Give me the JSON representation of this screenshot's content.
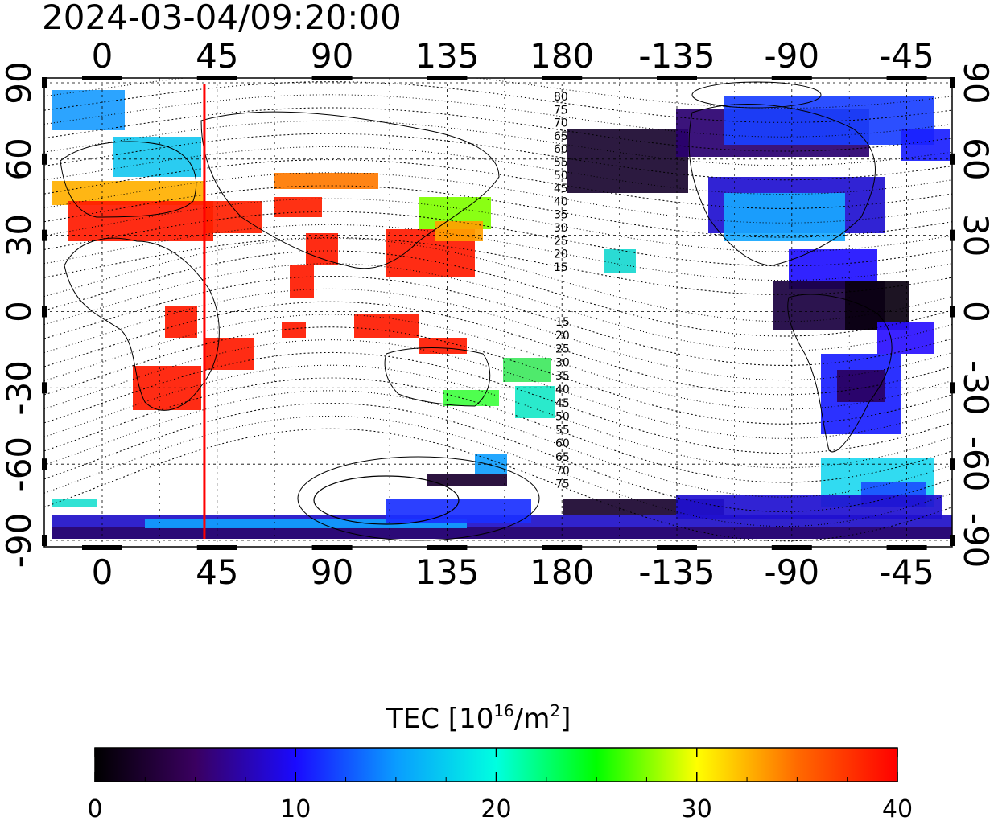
{
  "title": "2024-03-04/09:20:00",
  "lon_ticks": [
    "0",
    "45",
    "90",
    "135",
    "180",
    "-135",
    "-90",
    "-45"
  ],
  "lat_ticks": [
    "90",
    "60",
    "30",
    "0",
    "-30",
    "-60",
    "-90"
  ],
  "terminator_lon_deg": 40,
  "contour_labels_upper": [
    "80",
    "75",
    "70",
    "65",
    "60",
    "55",
    "50",
    "45",
    "40",
    "35",
    "30",
    "25",
    "20",
    "15"
  ],
  "contour_labels_lower": [
    "15",
    "20",
    "25",
    "30",
    "35",
    "40",
    "45",
    "50",
    "55",
    "60",
    "65",
    "70",
    "75"
  ],
  "colorbar": {
    "label_main": "TEC  [10",
    "label_sup1": "16",
    "label_mid": "/m",
    "label_sup2": "2",
    "label_end": "]",
    "ticks": [
      "0",
      "10",
      "20",
      "30",
      "40"
    ],
    "min": 0,
    "max": 40,
    "colors": [
      "#000000",
      "#3a0060",
      "#1a0aff",
      "#0a9cff",
      "#00ffe0",
      "#00ff00",
      "#ffff00",
      "#ff6a00",
      "#ff0000"
    ]
  },
  "colors": {
    "terminator": "#ff0000",
    "grid": "#000000"
  }
}
